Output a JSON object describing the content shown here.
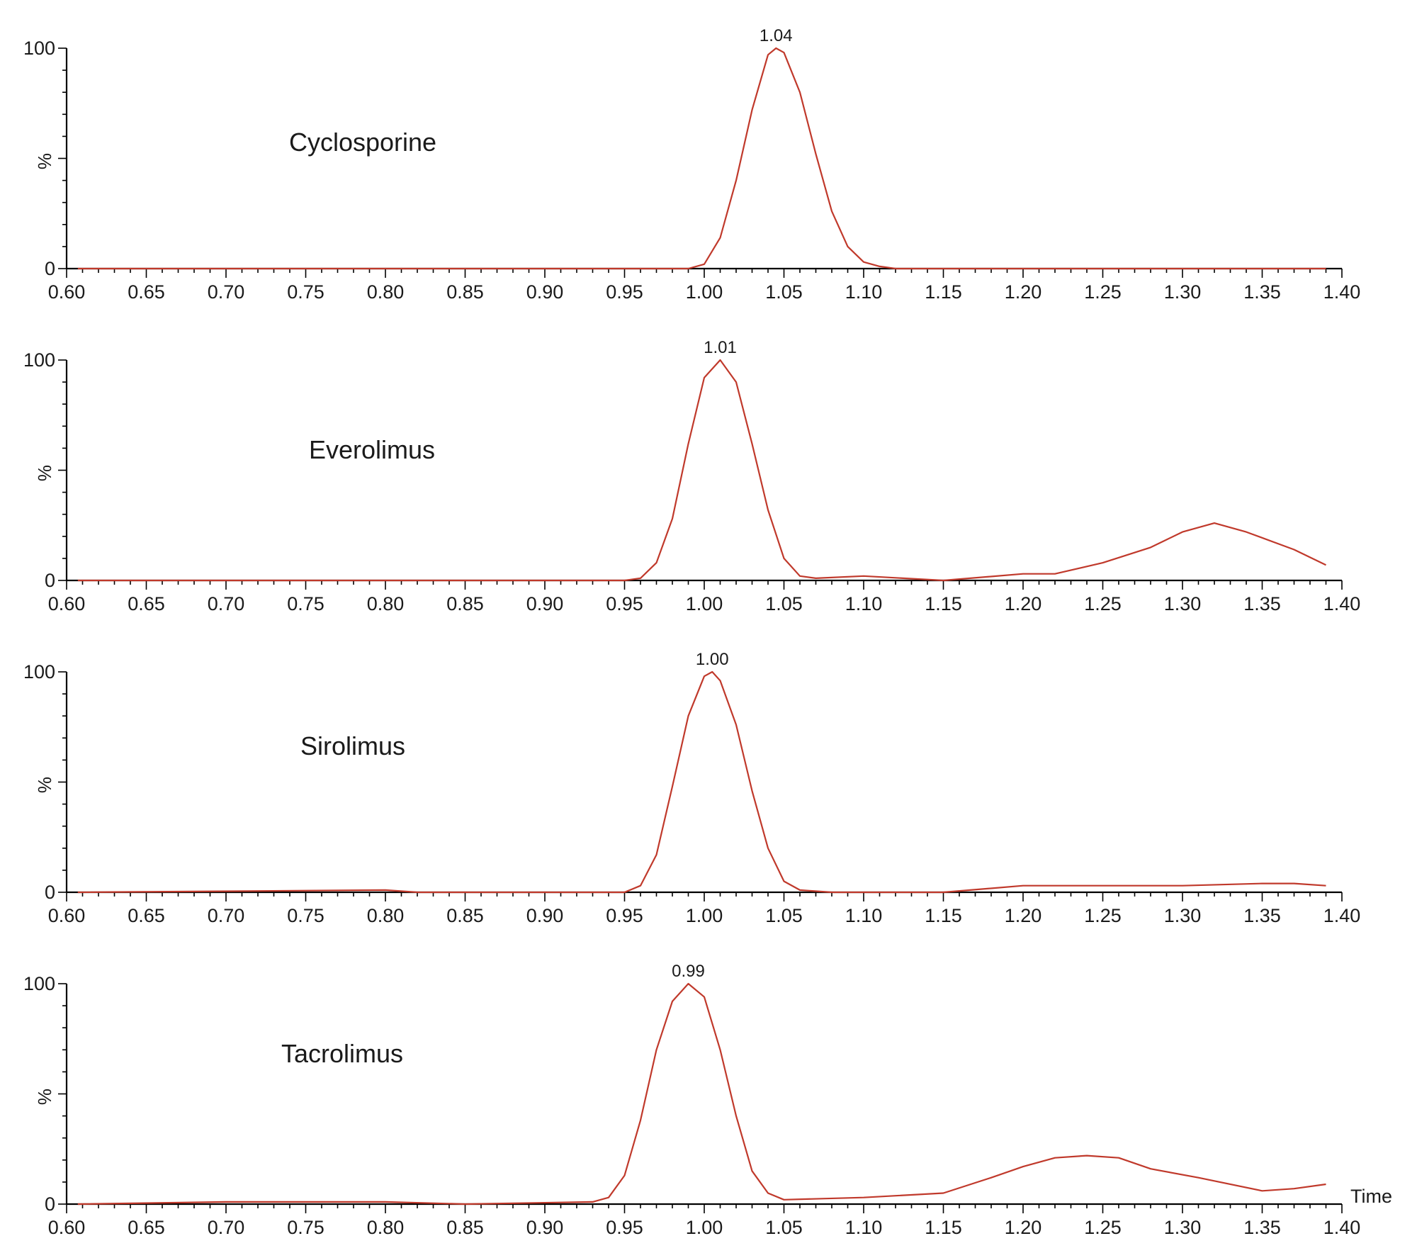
{
  "figure": {
    "x_axis_end_label": "Time",
    "y_tick_top_label": "100",
    "y_tick_bottom_label": "0",
    "y_axis_label": "%",
    "trace_color": "#c0392b"
  },
  "chart_data": [
    {
      "type": "line",
      "title": "",
      "annotation": "Cyclosporine",
      "peak_label": "1.04",
      "peak_label_x": 1.045,
      "xlim": [
        0.6,
        1.4
      ],
      "ylim": [
        0,
        100
      ],
      "x_ticks": [
        "0.60",
        "0.65",
        "0.70",
        "0.75",
        "0.80",
        "0.85",
        "0.90",
        "0.95",
        "1.00",
        "1.05",
        "1.10",
        "1.15",
        "1.20",
        "1.25",
        "1.30",
        "1.35",
        "1.40"
      ],
      "series": [
        {
          "points": [
            [
              0.607,
              0
            ],
            [
              0.99,
              0
            ],
            [
              1.0,
              2
            ],
            [
              1.01,
              14
            ],
            [
              1.02,
              40
            ],
            [
              1.03,
              72
            ],
            [
              1.04,
              97
            ],
            [
              1.045,
              100
            ],
            [
              1.05,
              98
            ],
            [
              1.06,
              80
            ],
            [
              1.07,
              52
            ],
            [
              1.08,
              26
            ],
            [
              1.09,
              10
            ],
            [
              1.1,
              3
            ],
            [
              1.11,
              1
            ],
            [
              1.12,
              0
            ],
            [
              1.39,
              0
            ]
          ]
        }
      ]
    },
    {
      "type": "line",
      "title": "",
      "annotation": "Everolimus",
      "peak_label": "1.01",
      "peak_label_x": 1.01,
      "xlim": [
        0.6,
        1.4
      ],
      "ylim": [
        0,
        100
      ],
      "x_ticks": [
        "0.60",
        "0.65",
        "0.70",
        "0.75",
        "0.80",
        "0.85",
        "0.90",
        "0.95",
        "1.00",
        "1.05",
        "1.10",
        "1.15",
        "1.20",
        "1.25",
        "1.30",
        "1.35",
        "1.40"
      ],
      "series": [
        {
          "points": [
            [
              0.607,
              0
            ],
            [
              0.95,
              0
            ],
            [
              0.96,
              1
            ],
            [
              0.97,
              8
            ],
            [
              0.98,
              28
            ],
            [
              0.99,
              62
            ],
            [
              1.0,
              92
            ],
            [
              1.01,
              100
            ],
            [
              1.02,
              90
            ],
            [
              1.03,
              62
            ],
            [
              1.04,
              32
            ],
            [
              1.05,
              10
            ],
            [
              1.06,
              2
            ],
            [
              1.07,
              1
            ],
            [
              1.1,
              2
            ],
            [
              1.15,
              0
            ],
            [
              1.2,
              3
            ],
            [
              1.22,
              3
            ],
            [
              1.25,
              8
            ],
            [
              1.28,
              15
            ],
            [
              1.3,
              22
            ],
            [
              1.32,
              26
            ],
            [
              1.34,
              22
            ],
            [
              1.37,
              14
            ],
            [
              1.39,
              7
            ]
          ]
        }
      ]
    },
    {
      "type": "line",
      "title": "",
      "annotation": "Sirolimus",
      "peak_label": "1.00",
      "peak_label_x": 1.005,
      "xlim": [
        0.6,
        1.4
      ],
      "ylim": [
        0,
        100
      ],
      "x_ticks": [
        "0.60",
        "0.65",
        "0.70",
        "0.75",
        "0.80",
        "0.85",
        "0.90",
        "0.95",
        "1.00",
        "1.05",
        "1.10",
        "1.15",
        "1.20",
        "1.25",
        "1.30",
        "1.35",
        "1.40"
      ],
      "series": [
        {
          "points": [
            [
              0.607,
              0
            ],
            [
              0.8,
              1
            ],
            [
              0.82,
              0
            ],
            [
              0.95,
              0
            ],
            [
              0.96,
              3
            ],
            [
              0.97,
              17
            ],
            [
              0.98,
              48
            ],
            [
              0.99,
              80
            ],
            [
              1.0,
              98
            ],
            [
              1.005,
              100
            ],
            [
              1.01,
              96
            ],
            [
              1.02,
              76
            ],
            [
              1.03,
              46
            ],
            [
              1.04,
              20
            ],
            [
              1.05,
              5
            ],
            [
              1.06,
              1
            ],
            [
              1.08,
              0
            ],
            [
              1.15,
              0
            ],
            [
              1.2,
              3
            ],
            [
              1.3,
              3
            ],
            [
              1.35,
              4
            ],
            [
              1.37,
              4
            ],
            [
              1.39,
              3
            ]
          ]
        }
      ]
    },
    {
      "type": "line",
      "title": "",
      "annotation": "Tacrolimus",
      "peak_label": "0.99",
      "peak_label_x": 0.99,
      "xlim": [
        0.6,
        1.4
      ],
      "ylim": [
        0,
        100
      ],
      "x_ticks": [
        "0.60",
        "0.65",
        "0.70",
        "0.75",
        "0.80",
        "0.85",
        "0.90",
        "0.95",
        "1.00",
        "1.05",
        "1.10",
        "1.15",
        "1.20",
        "1.25",
        "1.30",
        "1.35",
        "1.40"
      ],
      "series": [
        {
          "points": [
            [
              0.607,
              0
            ],
            [
              0.7,
              1
            ],
            [
              0.8,
              1
            ],
            [
              0.85,
              0
            ],
            [
              0.93,
              1
            ],
            [
              0.94,
              3
            ],
            [
              0.95,
              13
            ],
            [
              0.96,
              38
            ],
            [
              0.97,
              70
            ],
            [
              0.98,
              92
            ],
            [
              0.99,
              100
            ],
            [
              1.0,
              94
            ],
            [
              1.01,
              70
            ],
            [
              1.02,
              40
            ],
            [
              1.03,
              15
            ],
            [
              1.04,
              5
            ],
            [
              1.05,
              2
            ],
            [
              1.1,
              3
            ],
            [
              1.15,
              5
            ],
            [
              1.18,
              12
            ],
            [
              1.2,
              17
            ],
            [
              1.22,
              21
            ],
            [
              1.24,
              22
            ],
            [
              1.26,
              21
            ],
            [
              1.28,
              16
            ],
            [
              1.31,
              12
            ],
            [
              1.35,
              6
            ],
            [
              1.37,
              7
            ],
            [
              1.39,
              9
            ]
          ]
        }
      ]
    }
  ]
}
